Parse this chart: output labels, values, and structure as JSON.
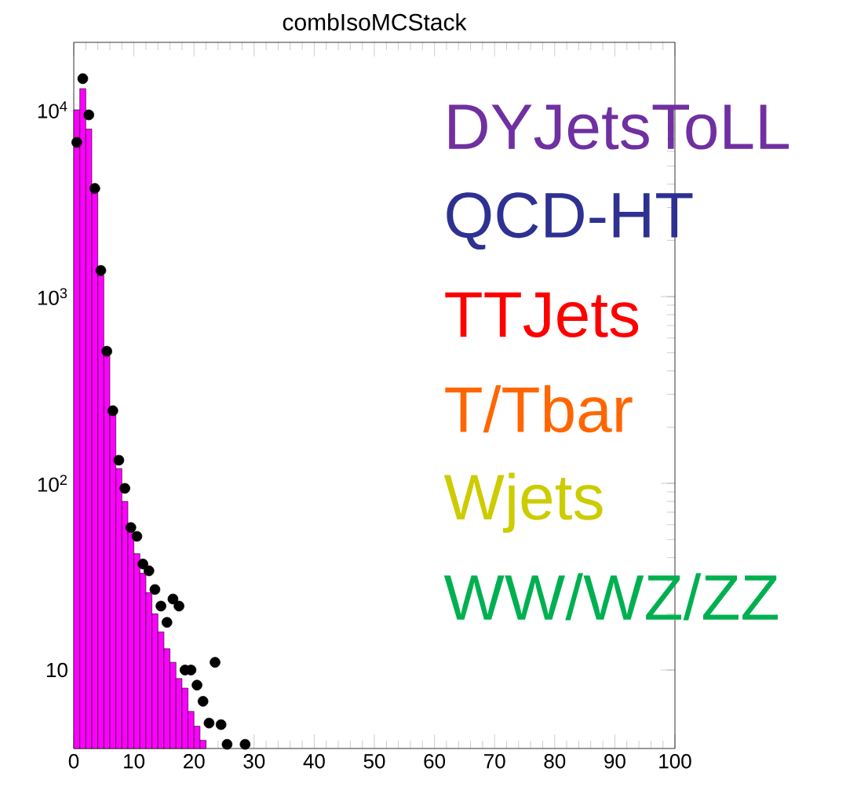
{
  "chart_data": {
    "type": "bar",
    "title": "combIsoMCStack",
    "annotations": [
      "DYJetsToLL",
      "QCD-HT",
      "TTJets",
      "T/Tbar",
      "Wjets",
      "WW/WZ/ZZ"
    ],
    "xlim": [
      0,
      100
    ],
    "xticks": [
      0,
      10,
      20,
      30,
      40,
      50,
      60,
      70,
      80,
      90,
      100
    ],
    "ylim": [
      3.8,
      23000
    ],
    "yticks": [
      {
        "value": 10,
        "label": "10"
      },
      {
        "value": 100,
        "label": "10$^{2}$"
      },
      {
        "value": 1000,
        "label": "10$^{3}$"
      },
      {
        "value": 10000,
        "label": "10$^{4}$"
      }
    ],
    "log": "y",
    "marker": "circle",
    "series": [
      {
        "color": "#ff00ff",
        "x": [
          0.5,
          1.5,
          2.5,
          3.5,
          4.5,
          5.5,
          6.5,
          7.5,
          8.5,
          9.5,
          10.5,
          11.5,
          12.5,
          13.5,
          14.5,
          15.5,
          16.5,
          17.5,
          18.5,
          19.5,
          20.5,
          21.5
        ],
        "values": [
          10000,
          13000,
          7900,
          3600,
          1300,
          500,
          240,
          120,
          80,
          55,
          42,
          33,
          26,
          20,
          16,
          13,
          11,
          9,
          8,
          6,
          5,
          4.2
        ]
      },
      {
        "type": "scatter",
        "color": "#000000",
        "x": [
          0.5,
          1.5,
          2.5,
          3.5,
          4.5,
          5.5,
          6.5,
          7.5,
          8.5,
          9.5,
          10.5,
          11.5,
          12.5,
          13.5,
          14.5,
          15.5,
          16.5,
          17.5,
          18.5,
          19.5,
          20.5,
          21.5,
          22.5,
          23.5,
          24.5,
          25.5,
          28.5
        ],
        "values": [
          6700,
          14700,
          9400,
          3800,
          1380,
          510,
          245,
          133,
          94,
          58,
          52,
          37,
          34,
          27,
          22,
          18,
          24,
          22,
          10,
          10,
          8.3,
          6.8,
          5.2,
          11,
          5.1,
          4,
          4
        ]
      }
    ]
  }
}
